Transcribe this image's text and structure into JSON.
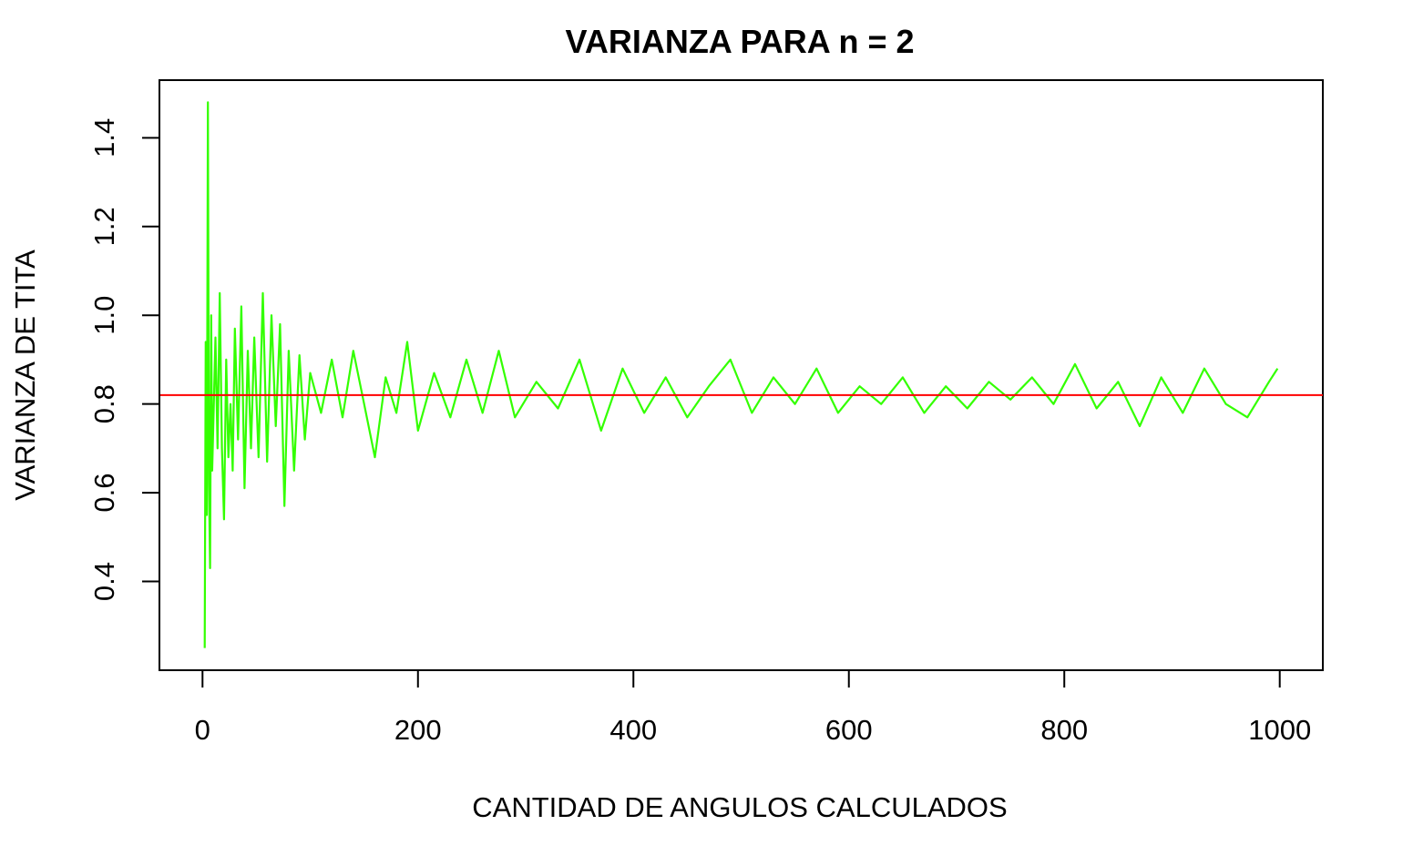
{
  "chart_data": {
    "type": "line",
    "title": "VARIANZA PARA n =  2",
    "xlabel": "CANTIDAD DE ANGULOS CALCULADOS",
    "ylabel": "VARIANZA DE TITA",
    "xlim": [
      -40,
      1040
    ],
    "ylim": [
      0.2,
      1.53
    ],
    "x_ticks": [
      0,
      200,
      400,
      600,
      800,
      1000
    ],
    "x_tick_labels": [
      "0",
      "200",
      "400",
      "600",
      "800",
      "1000"
    ],
    "y_ticks": [
      0.4,
      0.6,
      0.8,
      1.0,
      1.2,
      1.4
    ],
    "y_tick_labels": [
      "0.4",
      "0.6",
      "0.8",
      "1.0",
      "1.2",
      "1.4"
    ],
    "grid": false,
    "legend": "none",
    "reference_line": {
      "y": 0.82,
      "color": "#ff0000"
    },
    "series": [
      {
        "color": "#33ff00",
        "x": [
          2,
          3,
          4,
          5,
          6,
          7,
          8,
          9,
          10,
          12,
          14,
          16,
          18,
          20,
          22,
          24,
          26,
          28,
          30,
          33,
          36,
          39,
          42,
          45,
          48,
          52,
          56,
          60,
          64,
          68,
          72,
          76,
          80,
          85,
          90,
          95,
          100,
          110,
          120,
          130,
          140,
          150,
          160,
          170,
          180,
          190,
          200,
          215,
          230,
          245,
          260,
          275,
          290,
          310,
          330,
          350,
          370,
          390,
          410,
          430,
          450,
          470,
          490,
          510,
          530,
          550,
          570,
          590,
          610,
          630,
          650,
          670,
          690,
          710,
          730,
          750,
          770,
          790,
          810,
          830,
          850,
          870,
          890,
          910,
          930,
          950,
          970,
          990,
          998
        ],
        "values": [
          0.25,
          0.94,
          0.55,
          1.48,
          0.62,
          0.43,
          1.0,
          0.65,
          0.75,
          0.95,
          0.7,
          1.05,
          0.7,
          0.54,
          0.9,
          0.68,
          0.8,
          0.65,
          0.97,
          0.72,
          1.02,
          0.61,
          0.92,
          0.7,
          0.95,
          0.68,
          1.05,
          0.67,
          1.0,
          0.75,
          0.98,
          0.57,
          0.92,
          0.65,
          0.91,
          0.72,
          0.87,
          0.78,
          0.9,
          0.77,
          0.92,
          0.8,
          0.68,
          0.86,
          0.78,
          0.94,
          0.74,
          0.87,
          0.77,
          0.9,
          0.78,
          0.92,
          0.77,
          0.85,
          0.79,
          0.9,
          0.74,
          0.88,
          0.78,
          0.86,
          0.77,
          0.84,
          0.9,
          0.78,
          0.86,
          0.8,
          0.88,
          0.78,
          0.84,
          0.8,
          0.86,
          0.78,
          0.84,
          0.79,
          0.85,
          0.81,
          0.86,
          0.8,
          0.89,
          0.79,
          0.85,
          0.75,
          0.86,
          0.78,
          0.88,
          0.8,
          0.77,
          0.85,
          0.88
        ]
      }
    ]
  }
}
